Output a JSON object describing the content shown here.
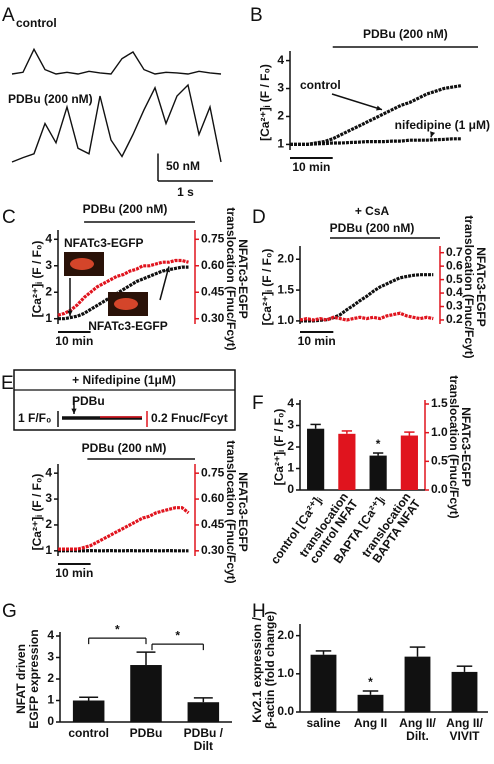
{
  "chart_data": [
    {
      "type": "trace",
      "panel": "A",
      "x": [
        0,
        0.2,
        0.4,
        0.6,
        0.8,
        1,
        1.2,
        1.4,
        1.6,
        1.8,
        2,
        2.2,
        2.4,
        2.6,
        2.8,
        3,
        3.2,
        3.4,
        3.6,
        3.8
      ],
      "series": [
        {
          "name": "control",
          "color": "#111111",
          "values": [
            0,
            3,
            45,
            8,
            0,
            3,
            0,
            5,
            2,
            0,
            28,
            40,
            8,
            0,
            3,
            2,
            0,
            5,
            2,
            0
          ]
        },
        {
          "name": "PDBu (200 nM)",
          "color": "#111111",
          "values": [
            0,
            8,
            15,
            70,
            35,
            100,
            25,
            15,
            120,
            40,
            10,
            50,
            95,
            135,
            70,
            120,
            140,
            50,
            100,
            0
          ]
        }
      ],
      "xscale": {
        "value": 1,
        "label": "1 s"
      },
      "yscale": {
        "value": 50,
        "label": "50 nM"
      }
    },
    {
      "type": "line",
      "panel": "B",
      "ylabel": [
        "[Ca²⁺]ᵢ (F / F₀)"
      ],
      "x": [
        0,
        2,
        4,
        6,
        8,
        10,
        12,
        14,
        16,
        18,
        20,
        22,
        24,
        26,
        28,
        30,
        32,
        34,
        36,
        38,
        40
      ],
      "xlim": [
        0,
        44
      ],
      "ylim": [
        0.8,
        4.2
      ],
      "yticks": [
        1,
        2,
        3,
        4
      ],
      "series": [
        {
          "name": "control",
          "color": "#111111",
          "values": [
            1.0,
            1.0,
            1.0,
            1.05,
            1.1,
            1.2,
            1.35,
            1.5,
            1.65,
            1.8,
            1.95,
            2.1,
            2.25,
            2.4,
            2.5,
            2.65,
            2.8,
            2.9,
            3.0,
            3.05,
            3.1
          ]
        },
        {
          "name": "nifedipine (1 μM)",
          "color": "#111111",
          "values": [
            1.0,
            1.0,
            1.0,
            1.02,
            1.03,
            1.05,
            1.05,
            1.07,
            1.08,
            1.1,
            1.1,
            1.1,
            1.12,
            1.12,
            1.15,
            1.15,
            1.15,
            1.17,
            1.18,
            1.2,
            1.2
          ]
        }
      ],
      "xscale": {
        "value": 10,
        "label": "10 min"
      },
      "annotations": [
        "PDBu (200 nM)"
      ]
    },
    {
      "type": "line",
      "panel": "C",
      "ylabel": [
        "[Ca²⁺]ᵢ (F / F₀)"
      ],
      "y2label": [
        "NFATc3-EGFP",
        "translocation (Fnuc/Fcyt)"
      ],
      "x": [
        0,
        2,
        4,
        6,
        8,
        10,
        12,
        14,
        16,
        18,
        20,
        22,
        24,
        26,
        28,
        30,
        32,
        34,
        36,
        38,
        40
      ],
      "xlim": [
        0,
        42
      ],
      "ylim": [
        0.8,
        4.2
      ],
      "yticks": [
        1,
        2,
        3,
        4
      ],
      "y2lim": [
        0.27,
        0.78
      ],
      "y2ticks": [
        {
          "value": 0.3,
          "label": "0.30"
        },
        0.45,
        {
          "value": 0.6,
          "label": "0.60"
        },
        0.75
      ],
      "series": [
        {
          "color": "#111111",
          "values": [
            1.0,
            1.0,
            1.05,
            1.1,
            1.2,
            1.35,
            1.5,
            1.65,
            1.8,
            1.95,
            2.1,
            2.25,
            2.4,
            2.5,
            2.6,
            2.7,
            2.8,
            2.85,
            2.9,
            2.95,
            2.95
          ]
        },
        {
          "color": "#e0141e",
          "axis": "y2",
          "values": [
            0.32,
            0.33,
            0.35,
            0.38,
            0.42,
            0.45,
            0.48,
            0.5,
            0.52,
            0.54,
            0.55,
            0.57,
            0.58,
            0.6,
            0.6,
            0.61,
            0.62,
            0.62,
            0.63,
            0.63,
            0.62
          ]
        }
      ],
      "xscale": {
        "value": 10,
        "label": "10 min"
      },
      "annotations": [
        "PDBu (200 nM)",
        "NFATc3-EGFP",
        "NFATc3-EGFP"
      ]
    },
    {
      "type": "line",
      "panel": "D",
      "ylabel": [
        "[Ca²⁺]ᵢ (F / F₀)"
      ],
      "y2label": [
        "NFATc3-EGFP",
        "translocation (Fnuc/Fcyt)"
      ],
      "x": [
        0,
        2,
        4,
        6,
        8,
        10,
        12,
        14,
        16,
        18,
        20,
        22,
        24,
        26,
        28,
        30,
        32,
        34,
        36,
        38,
        40
      ],
      "xlim": [
        0,
        42
      ],
      "ylim": [
        0.95,
        2.15
      ],
      "yticks": [
        {
          "value": 1,
          "label": "1.0"
        },
        1.5,
        {
          "value": 2,
          "label": "2.0"
        }
      ],
      "y2lim": [
        0.17,
        0.72
      ],
      "y2ticks": [
        0.2,
        0.3,
        0.4,
        0.5,
        0.6,
        0.7
      ],
      "series": [
        {
          "color": "#111111",
          "values": [
            1.0,
            1.0,
            1.0,
            1.01,
            1.02,
            1.05,
            1.1,
            1.18,
            1.25,
            1.33,
            1.4,
            1.48,
            1.55,
            1.6,
            1.65,
            1.7,
            1.72,
            1.74,
            1.75,
            1.75,
            1.75
          ]
        },
        {
          "color": "#e0141e",
          "axis": "y2",
          "values": [
            0.2,
            0.21,
            0.2,
            0.21,
            0.2,
            0.22,
            0.21,
            0.2,
            0.21,
            0.22,
            0.21,
            0.22,
            0.21,
            0.23,
            0.24,
            0.25,
            0.23,
            0.22,
            0.21,
            0.22,
            0.21
          ]
        }
      ],
      "xscale": {
        "value": 10,
        "label": "10 min"
      },
      "annotations": [
        "+ CsA",
        "PDBu (200 nM)"
      ]
    },
    {
      "type": "line",
      "panel": "E",
      "ylabel": [
        "[Ca²⁺]ᵢ (F / F₀)"
      ],
      "y2label": [
        "NFATc3-EGFP",
        "translocation (Fnuc/Fcyt)"
      ],
      "x": [
        0,
        2,
        4,
        6,
        8,
        10,
        12,
        14,
        16,
        18,
        20,
        22,
        24,
        26,
        28,
        30,
        32,
        34,
        36,
        38,
        40
      ],
      "xlim": [
        0,
        42
      ],
      "ylim": [
        0.8,
        4.2
      ],
      "yticks": [
        1,
        2,
        3,
        4
      ],
      "y2lim": [
        0.27,
        0.78
      ],
      "y2ticks": [
        {
          "value": 0.3,
          "label": "0.30"
        },
        0.45,
        {
          "value": 0.6,
          "label": "0.60"
        },
        0.75
      ],
      "series": [
        {
          "color": "#111111",
          "values": [
            1.0,
            1.0,
            1.01,
            1.0,
            1.0,
            1.01,
            1.0,
            1.0,
            1.01,
            1.0,
            1.0,
            1.01,
            1.0,
            1.0,
            1.01,
            1.0,
            1.0,
            1.01,
            1.0,
            1.0,
            1.0
          ]
        },
        {
          "color": "#e0141e",
          "axis": "y2",
          "values": [
            0.31,
            0.31,
            0.31,
            0.31,
            0.32,
            0.33,
            0.35,
            0.37,
            0.39,
            0.41,
            0.43,
            0.45,
            0.47,
            0.49,
            0.5,
            0.52,
            0.53,
            0.54,
            0.55,
            0.55,
            0.52
          ]
        }
      ],
      "xscale": {
        "value": 10,
        "label": "10 min"
      },
      "annotations": [
        "+ Nifedipine (1μM)",
        "PDBu",
        "1 F/F₀",
        "0.2 Fnuc/Fcyt",
        "PDBu (200 nM)"
      ]
    },
    {
      "type": "bar",
      "panel": "F",
      "ylabel": [
        "[Ca²⁺]ᵢ (F / F₀)"
      ],
      "y2label": [
        "NFATc3-EGFP",
        "translocation (Fnuc/Fcyt)"
      ],
      "categories": [
        [
          "control [Ca²⁺]ᵢ"
        ],
        [
          "control NFAT",
          "translocation"
        ],
        [
          "BAPTA [Ca²⁺]ᵢ"
        ],
        [
          "BAPTA NFAT",
          "translocation"
        ]
      ],
      "values": [
        2.85,
        0.98,
        1.6,
        0.95
      ],
      "errors": [
        0.2,
        0.05,
        0.12,
        0.06
      ],
      "colors": [
        "#111111",
        "#e0141e",
        "#111111",
        "#e0141e"
      ],
      "axes": [
        "y",
        "y2",
        "y",
        "y2"
      ],
      "ylim": [
        0,
        4
      ],
      "yticks": [
        0,
        1,
        2,
        3,
        4
      ],
      "y2lim": [
        0,
        1.5
      ],
      "y2ticks": [
        {
          "value": 0,
          "label": "0.0"
        },
        0.5,
        {
          "value": 1,
          "label": "1.0"
        },
        1.5
      ],
      "annotations": [
        "*"
      ]
    },
    {
      "type": "bar",
      "panel": "G",
      "ylabel": [
        "NFAT driven",
        "EGFP expression"
      ],
      "categories": [
        [
          "control"
        ],
        [
          "PDBu"
        ],
        [
          "PDBu /",
          "Dilt"
        ]
      ],
      "values": [
        1.0,
        2.65,
        0.92
      ],
      "errors": [
        0.15,
        0.6,
        0.2
      ],
      "colors": [
        "#111111",
        "#111111",
        "#111111"
      ],
      "ylim": [
        0,
        4
      ],
      "yticks": [
        0,
        1,
        2,
        3,
        4
      ],
      "annotations": [
        "*",
        "*"
      ]
    },
    {
      "type": "bar",
      "panel": "H",
      "ylabel": [
        "Kv2.1 expression /",
        "β-actin (fold change)"
      ],
      "categories": [
        [
          "saline"
        ],
        [
          "Ang II"
        ],
        [
          "Ang II/",
          "Dilt."
        ],
        [
          "Ang II/",
          "VIVIT"
        ]
      ],
      "values": [
        1.5,
        0.45,
        1.45,
        1.05
      ],
      "errors": [
        0.1,
        0.1,
        0.25,
        0.15
      ],
      "colors": [
        "#111111",
        "#111111",
        "#111111",
        "#111111"
      ],
      "ylim": [
        0,
        2.2
      ],
      "yticks": [
        {
          "value": 0,
          "label": "0.0"
        },
        {
          "value": 1,
          "label": "1.0"
        },
        {
          "value": 2,
          "label": "2.0"
        }
      ],
      "annotations": [
        "*"
      ]
    }
  ]
}
